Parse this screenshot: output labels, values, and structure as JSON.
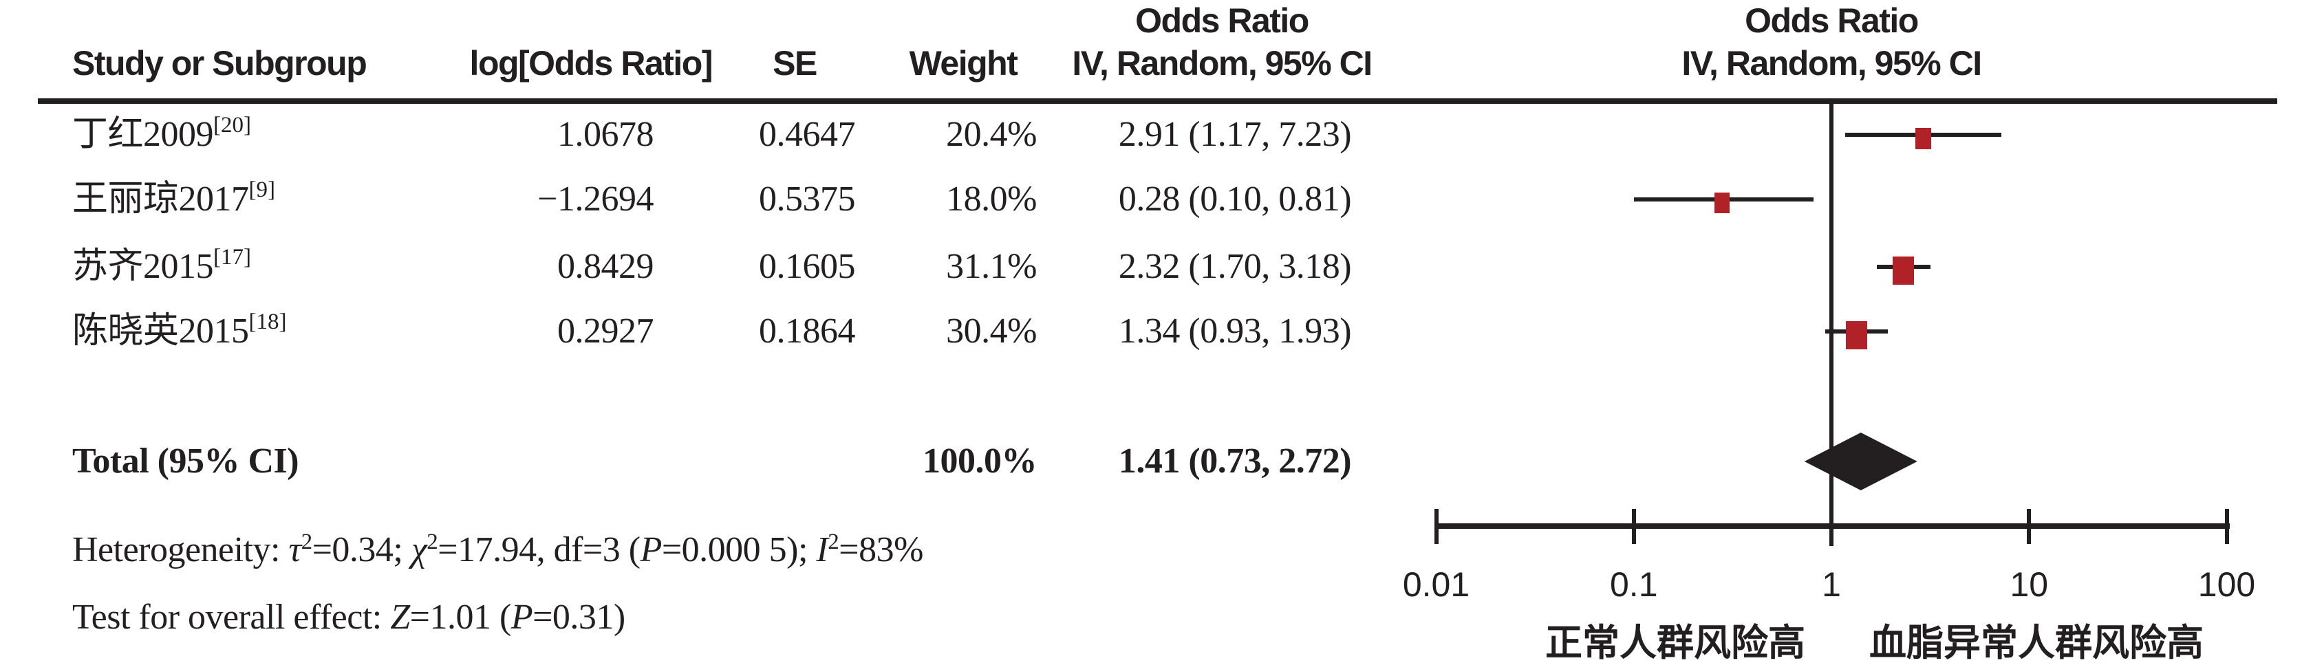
{
  "header": {
    "study": "Study or Subgroup",
    "log_or": "log[Odds Ratio]",
    "se": "SE",
    "weight": "Weight",
    "or_col_line1": "Odds Ratio",
    "or_col_line2": "IV, Random, 95% CI",
    "plot_col_line1": "Odds Ratio",
    "plot_col_line2": "IV, Random, 95% CI"
  },
  "total_row": {
    "label": "Total (95% CI)",
    "weight_text": "100.0%",
    "ci_text": "1.41 (0.73, 2.72)"
  },
  "footnotes": {
    "heterogeneity_segments": [
      {
        "t": "Heterogeneity: "
      },
      {
        "t": "τ",
        "i": true
      },
      {
        "t": "2",
        "s": true
      },
      {
        "t": "=0.34; "
      },
      {
        "t": "χ",
        "i": true
      },
      {
        "t": "2",
        "s": true
      },
      {
        "t": "=17.94, df=3 ("
      },
      {
        "t": "P",
        "i": true
      },
      {
        "t": "=0.000 5); "
      },
      {
        "t": "I",
        "i": true
      },
      {
        "t": "2",
        "s": true
      },
      {
        "t": "=83%"
      }
    ],
    "overall_segments": [
      {
        "t": "Test for overall effect: "
      },
      {
        "t": "Z",
        "i": true
      },
      {
        "t": "=1.01 ("
      },
      {
        "t": "P",
        "i": true
      },
      {
        "t": "=0.31)"
      }
    ]
  },
  "axis": {
    "tick_labels": [
      "0.01",
      "0.1",
      "1",
      "10",
      "100"
    ],
    "tick_values": [
      0.01,
      0.1,
      1,
      10,
      100
    ],
    "left_label": "正常人群风险高",
    "right_label": "血脂异常人群风险高"
  },
  "colors": {
    "marker_red": "#b12228",
    "ink": "#231f20"
  },
  "chart_data": {
    "type": "scatter",
    "subtype": "forest-plot",
    "effect_measure": "Odds Ratio, IV, Random, 95% CI",
    "x_scale": "log10",
    "x_ticks": [
      0.01,
      0.1,
      1,
      10,
      100
    ],
    "x_axis_left_label": "正常人群风险高",
    "x_axis_right_label": "血脂异常人群风险高",
    "studies": [
      {
        "label": "丁红2009",
        "ref": "[20]",
        "log_or_text": "1.0678",
        "se_text": "0.4647",
        "weight_text": "20.4%",
        "ci_text": "2.91 (1.17, 7.23)",
        "or": 2.91,
        "ci_low": 1.17,
        "ci_high": 7.23,
        "weight_pct": 20.4
      },
      {
        "label": "王丽琼2017",
        "ref": "[9]",
        "log_or_text": "−1.2694",
        "se_text": "0.5375",
        "weight_text": "18.0%",
        "ci_text": "0.28 (0.10, 0.81)",
        "or": 0.28,
        "ci_low": 0.1,
        "ci_high": 0.81,
        "weight_pct": 18.0
      },
      {
        "label": "苏齐2015",
        "ref": "[17]",
        "log_or_text": "0.8429",
        "se_text": "0.1605",
        "weight_text": "31.1%",
        "ci_text": "2.32 (1.70, 3.18)",
        "or": 2.32,
        "ci_low": 1.7,
        "ci_high": 3.18,
        "weight_pct": 31.1
      },
      {
        "label": "陈晓英2015",
        "ref": "[18]",
        "log_or_text": "0.2927",
        "se_text": "0.1864",
        "weight_text": "30.4%",
        "ci_text": "1.34 (0.93, 1.93)",
        "or": 1.34,
        "ci_low": 0.93,
        "ci_high": 1.93,
        "weight_pct": 30.4
      }
    ],
    "total": {
      "label": "Total (95% CI)",
      "or": 1.41,
      "ci_low": 0.73,
      "ci_high": 2.72,
      "weight_pct": 100.0
    },
    "heterogeneity": {
      "tau2": 0.34,
      "chi2": 17.94,
      "df": 3,
      "p": "0.000 5",
      "i2_pct": 83
    },
    "overall_effect": {
      "z": 1.01,
      "p": 0.31
    }
  }
}
